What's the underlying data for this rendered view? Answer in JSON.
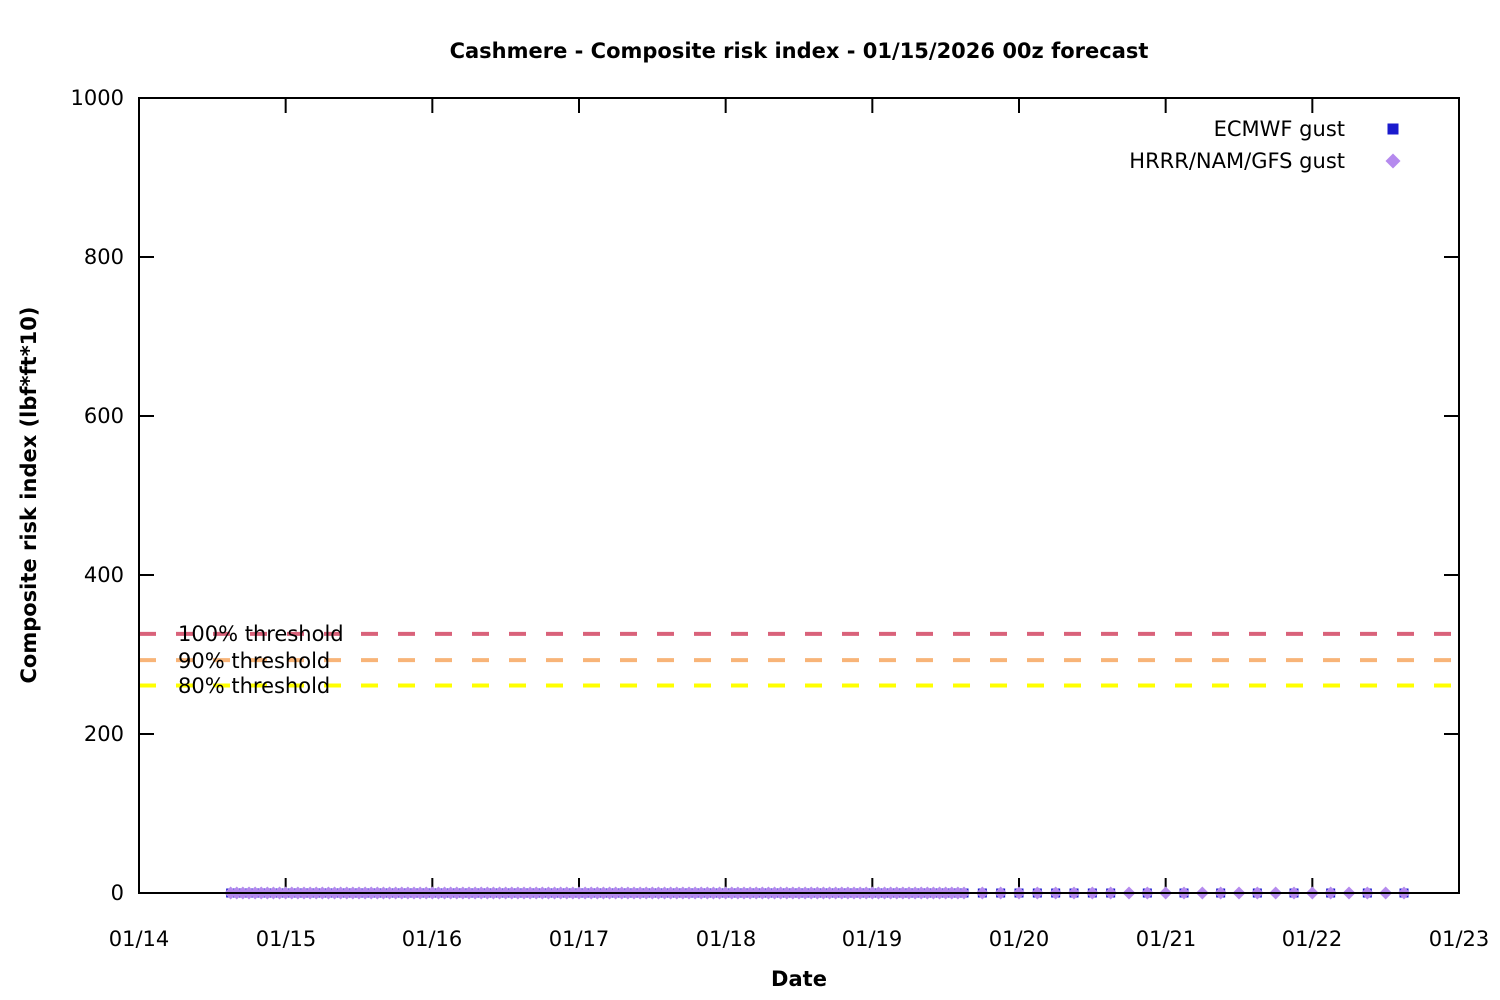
{
  "page": {
    "background": "#ffffff"
  },
  "chart_data": {
    "type": "scatter",
    "title": "Cashmere - Composite risk index - 01/15/2026 00z forecast",
    "xlabel": "Date",
    "ylabel": "Composite risk index (lbf*ft*10)",
    "x_ticks": [
      "01/14",
      "01/15",
      "01/16",
      "01/17",
      "01/18",
      "01/19",
      "01/20",
      "01/21",
      "01/22",
      "01/23"
    ],
    "x_range_days": [
      0,
      9
    ],
    "y_ticks": [
      0,
      200,
      400,
      600,
      800,
      1000
    ],
    "ylim": [
      0,
      1000
    ],
    "grid": false,
    "legend_position": "top-right-inside",
    "axis_color": "#000000",
    "thresholds": [
      {
        "label": "100% threshold",
        "value": 326,
        "color": "#d9627a",
        "style": "dashed"
      },
      {
        "label": "90% threshold",
        "value": 293,
        "color": "#f8b478",
        "style": "dashed"
      },
      {
        "label": "80% threshold",
        "value": 261,
        "color": "#ffff00",
        "style": "dashed"
      }
    ],
    "series": [
      {
        "name": "ECMWF gust",
        "marker": "square",
        "color": "#1a1acd",
        "y_value": 0,
        "x_hours_origin": "01/14 00:00",
        "x_hours_segments": [
          {
            "from_hour": 15,
            "to_hour": 135,
            "step_hours": 1
          },
          {
            "from_hour": 138,
            "to_hour": 159,
            "step_hours": 3
          },
          {
            "from_hour": 165,
            "to_hour": 207,
            "step_hours": 6
          }
        ]
      },
      {
        "name": "HRRR/NAM/GFS gust",
        "marker": "diamond",
        "color": "#b58aee",
        "y_value": 0,
        "x_hours_origin": "01/14 00:00",
        "x_hours_segments": [
          {
            "from_hour": 15,
            "to_hour": 135,
            "step_hours": 1
          },
          {
            "from_hour": 138,
            "to_hour": 207,
            "step_hours": 3
          }
        ]
      }
    ]
  }
}
